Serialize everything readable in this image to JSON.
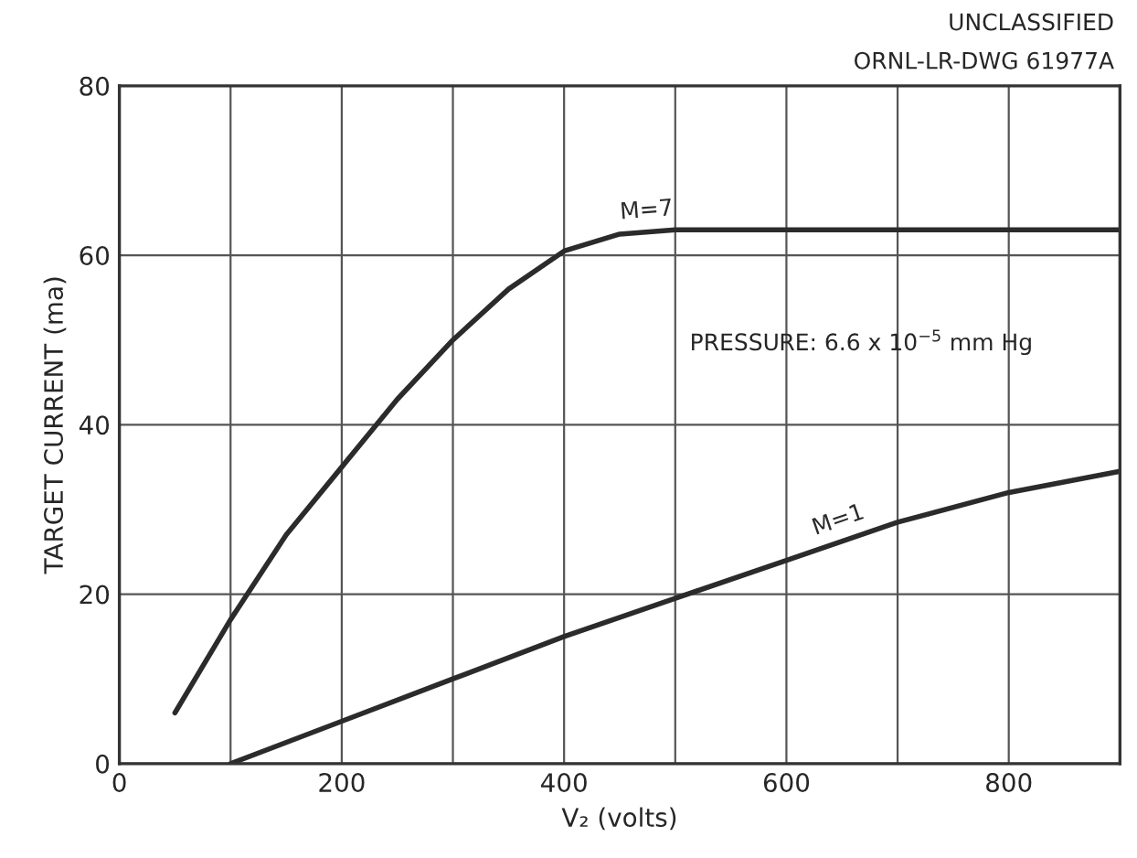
{
  "chart_data": {
    "type": "line",
    "xlabel": "V₂ (volts)",
    "ylabel": "TARGET CURRENT (ma)",
    "annotations": [
      "UNCLASSIFIED",
      "ORNL-LR-DWG 61977A",
      "PRESSURE: 6.6 x 10$^{−5}$ mm Hg"
    ],
    "series": [
      {
        "name": "M=7",
        "color": "#2b2b2b",
        "x": [
          50,
          100,
          150,
          200,
          250,
          300,
          350,
          400,
          450,
          500,
          600,
          700,
          800,
          900
        ],
        "values": [
          6,
          17,
          27,
          35,
          43,
          50,
          56,
          60.5,
          62.5,
          63,
          63,
          63,
          63,
          63
        ]
      },
      {
        "name": "M=1",
        "color": "#2b2b2b",
        "x": [
          100,
          200,
          300,
          400,
          500,
          600,
          700,
          800,
          900
        ],
        "values": [
          0,
          5,
          10,
          15,
          19.5,
          24,
          28.5,
          32,
          34.5
        ]
      }
    ],
    "xlim": [
      0,
      900
    ],
    "ylim": [
      0,
      80
    ],
    "xticks": [
      0,
      {
        "value": 100,
        "label": null
      },
      200,
      {
        "value": 300,
        "label": null
      },
      400,
      {
        "value": 500,
        "label": null
      },
      600,
      {
        "value": 700,
        "label": null
      },
      800,
      {
        "value": 900,
        "label": null
      }
    ],
    "yticks": [
      0,
      20,
      40,
      60,
      80
    ],
    "grid": true,
    "legend": false,
    "marker": "none",
    "line_style": "solid"
  }
}
